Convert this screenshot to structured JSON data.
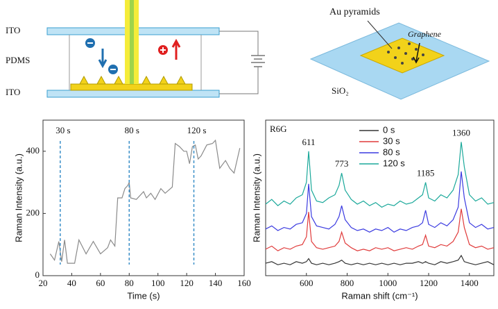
{
  "diagrams": {
    "device": {
      "top_electrode": "ITO",
      "spacer": "PDMS",
      "bottom_electrode": "ITO"
    },
    "substrate": {
      "particles": "Au pyramids",
      "layer": "Graphene",
      "base": "SiO₂"
    }
  },
  "chart_data": [
    {
      "type": "line",
      "x_label": "Time (s)",
      "y_label": "Raman Intensity (a.u.)",
      "xlim": [
        20,
        160
      ],
      "ylim": [
        0,
        500
      ],
      "xticks": [
        20,
        40,
        60,
        80,
        100,
        120,
        140,
        160
      ],
      "yticks": [
        0,
        200,
        400
      ],
      "series": [
        {
          "color": "#8a8a8a",
          "x": [
            25,
            28,
            31,
            33,
            35,
            37,
            42,
            45,
            50,
            55,
            60,
            65,
            67,
            70,
            72,
            75,
            77,
            79,
            80,
            81,
            85,
            90,
            92,
            95,
            98,
            102,
            105,
            110,
            112,
            115,
            118,
            120,
            122,
            124,
            126,
            128,
            130,
            134,
            138,
            140,
            143,
            147,
            150,
            153,
            157
          ],
          "values": [
            70,
            50,
            110,
            45,
            115,
            40,
            40,
            115,
            70,
            110,
            70,
            90,
            115,
            95,
            250,
            250,
            280,
            290,
            300,
            250,
            245,
            270,
            250,
            265,
            245,
            280,
            265,
            285,
            425,
            415,
            400,
            400,
            360,
            415,
            420,
            375,
            385,
            420,
            425,
            435,
            345,
            370,
            345,
            330,
            410
          ]
        }
      ],
      "markers": [
        {
          "label": "30 s",
          "x": 32
        },
        {
          "label": "80 s",
          "x": 80
        },
        {
          "label": "120 s",
          "x": 125
        }
      ],
      "marker_color": "#3a8fc8"
    },
    {
      "type": "spectrum",
      "title": "R6G",
      "x_label": "Raman shift (cm⁻¹)",
      "y_label": "Raman Intensity (a.u.)",
      "xlim": [
        400,
        1520
      ],
      "ylim": [
        0,
        100
      ],
      "xticks": [
        600,
        800,
        1000,
        1200,
        1400
      ],
      "x": [
        400,
        430,
        460,
        490,
        520,
        550,
        580,
        600,
        611,
        625,
        650,
        680,
        710,
        740,
        760,
        773,
        790,
        820,
        850,
        880,
        910,
        940,
        970,
        1000,
        1030,
        1060,
        1090,
        1120,
        1150,
        1170,
        1185,
        1200,
        1230,
        1260,
        1290,
        1320,
        1345,
        1360,
        1375,
        1400,
        1430,
        1460,
        1490,
        1520
      ],
      "series": [
        {
          "name": "0 s",
          "color": "#333333",
          "values": [
            8,
            9,
            7,
            8,
            7,
            9,
            8,
            9,
            11,
            8,
            7,
            8,
            7,
            8,
            9,
            10,
            8,
            7,
            8,
            7,
            8,
            7,
            8,
            7,
            8,
            7,
            8,
            8,
            9,
            8,
            9,
            8,
            7,
            9,
            8,
            9,
            10,
            13,
            9,
            8,
            7,
            8,
            9,
            7
          ]
        },
        {
          "name": "30 s",
          "color": "#e03a3a",
          "values": [
            17,
            19,
            16,
            18,
            17,
            19,
            20,
            25,
            41,
            22,
            18,
            17,
            18,
            19,
            22,
            28,
            21,
            18,
            16,
            17,
            16,
            18,
            17,
            18,
            16,
            17,
            18,
            17,
            19,
            20,
            26,
            19,
            18,
            20,
            19,
            22,
            28,
            43,
            31,
            20,
            18,
            19,
            17,
            18
          ]
        },
        {
          "name": "80 s",
          "color": "#3a3ae0",
          "values": [
            30,
            32,
            29,
            31,
            30,
            33,
            34,
            40,
            59,
            38,
            32,
            31,
            30,
            33,
            38,
            45,
            36,
            31,
            29,
            30,
            28,
            30,
            29,
            31,
            28,
            30,
            29,
            31,
            32,
            34,
            42,
            33,
            31,
            34,
            32,
            36,
            44,
            67,
            50,
            34,
            31,
            33,
            30,
            31
          ]
        },
        {
          "name": "120 s",
          "color": "#1aa89a",
          "values": [
            46,
            49,
            45,
            48,
            46,
            50,
            52,
            60,
            80,
            55,
            48,
            47,
            50,
            52,
            58,
            66,
            55,
            49,
            46,
            48,
            45,
            47,
            44,
            46,
            45,
            48,
            46,
            47,
            50,
            52,
            60,
            50,
            48,
            52,
            50,
            55,
            65,
            86,
            70,
            52,
            48,
            50,
            46,
            47
          ]
        }
      ],
      "peaks": [
        611,
        773,
        1185,
        1360
      ]
    }
  ]
}
